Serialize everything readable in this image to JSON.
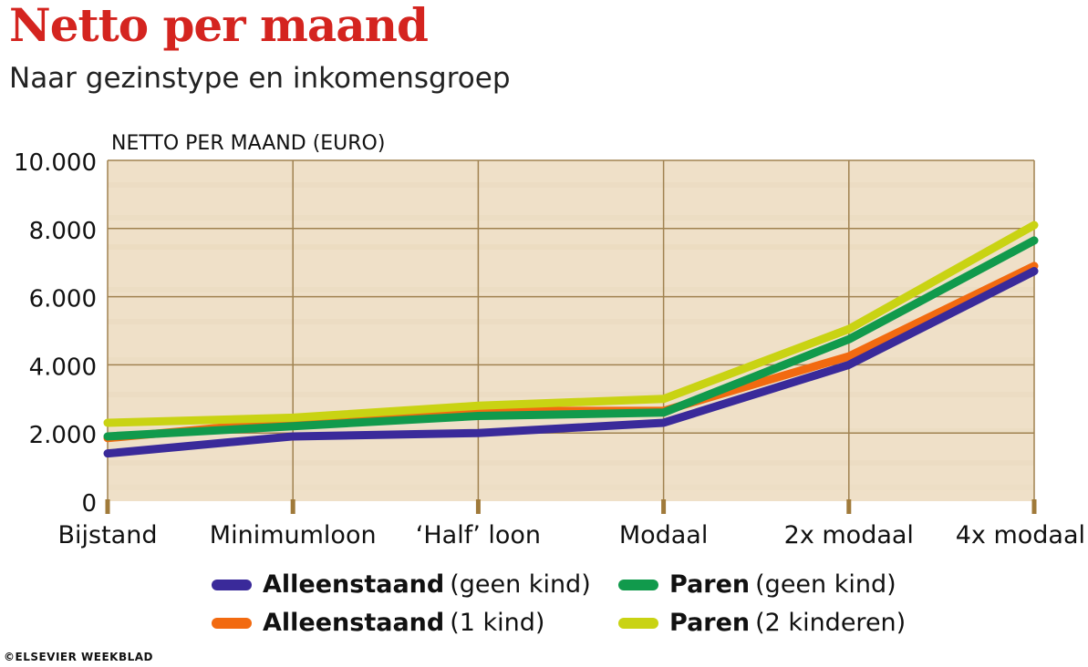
{
  "title": "Netto per maand",
  "subtitle": "Naar gezinstype en inkomensgroep",
  "credit": "©ELSEVIER WEEKBLAD",
  "colors": {
    "title": "#d4241f",
    "grid": "#a08250",
    "background": "#efe0c8"
  },
  "legend": [
    {
      "bold": "Alleenstaand",
      "rest": "(geen kind)",
      "color": "#3a2a9a"
    },
    {
      "bold": "Paren",
      "rest": "(geen kind)",
      "color": "#119a4c"
    },
    {
      "bold": "Alleenstaand",
      "rest": "(1 kind)",
      "color": "#f26a10"
    },
    {
      "bold": "Paren",
      "rest": "(2 kinderen)",
      "color": "#c9d313"
    }
  ],
  "chart_data": {
    "type": "line",
    "ylabel": "NETTO PER MAAND (EURO)",
    "xlabel": "",
    "categories": [
      "Bijstand",
      "Minimumloon",
      "‘Half’ loon",
      "Modaal",
      "2x modaal",
      "4x modaal"
    ],
    "ylim": [
      0,
      10000
    ],
    "yticks": [
      0,
      2000,
      4000,
      6000,
      8000,
      10000
    ],
    "ytick_labels": [
      "0",
      "2.000",
      "4.000",
      "6.000",
      "8.000",
      "10.000"
    ],
    "grid": true,
    "series": [
      {
        "name": "Alleenstaand (1 kind)",
        "color": "#f26a10",
        "values": [
          1850,
          2350,
          2650,
          2650,
          4250,
          6900
        ]
      },
      {
        "name": "Alleenstaand (geen kind)",
        "color": "#3a2a9a",
        "values": [
          1400,
          1900,
          2000,
          2300,
          4000,
          6750
        ]
      },
      {
        "name": "Paren (geen kind)",
        "color": "#119a4c",
        "values": [
          1900,
          2200,
          2500,
          2600,
          4750,
          7650
        ]
      },
      {
        "name": "Paren (2 kinderen)",
        "color": "#c9d313",
        "values": [
          2300,
          2450,
          2800,
          3000,
          5050,
          8100
        ]
      }
    ]
  }
}
